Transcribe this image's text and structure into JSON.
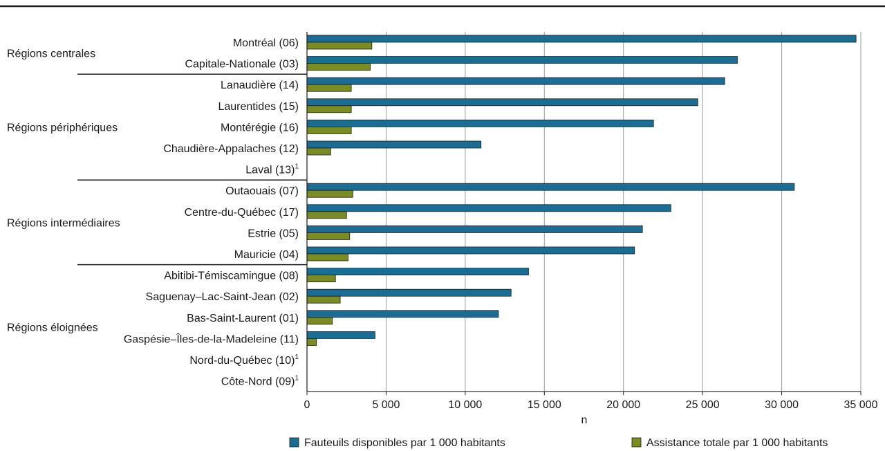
{
  "chart_data": {
    "type": "bar",
    "orientation": "horizontal",
    "xlabel": "n",
    "xlim": [
      0,
      35000
    ],
    "xticks": [
      0,
      5000,
      10000,
      15000,
      20000,
      25000,
      30000,
      35000
    ],
    "xtick_labels": [
      "0",
      "5 000",
      "10 000",
      "15 000",
      "20 000",
      "25 000",
      "30 000",
      "35 000"
    ],
    "grid": true,
    "legend_position": "bottom",
    "categories": [
      {
        "label": "Montréal (06)",
        "note": ""
      },
      {
        "label": "Capitale-Nationale (03)",
        "note": ""
      },
      {
        "label": "Lanaudière (14)",
        "note": ""
      },
      {
        "label": "Laurentides (15)",
        "note": ""
      },
      {
        "label": "Montérégie (16)",
        "note": ""
      },
      {
        "label": "Chaudière-Appalaches (12)",
        "note": ""
      },
      {
        "label": "Laval (13)",
        "note": "1"
      },
      {
        "label": "Outaouais (07)",
        "note": ""
      },
      {
        "label": "Centre-du-Québec (17)",
        "note": ""
      },
      {
        "label": "Estrie (05)",
        "note": ""
      },
      {
        "label": "Mauricie (04)",
        "note": ""
      },
      {
        "label": "Abitibi-Témiscamingue (08)",
        "note": ""
      },
      {
        "label": "Saguenay–Lac-Saint-Jean (02)",
        "note": ""
      },
      {
        "label": "Bas-Saint-Laurent (01)",
        "note": ""
      },
      {
        "label": "Gaspésie–Îles-de-la-Madeleine (11)",
        "note": ""
      },
      {
        "label": "Nord-du-Québec (10)",
        "note": "1"
      },
      {
        "label": "Côte-Nord (09)",
        "note": "1"
      }
    ],
    "series": [
      {
        "name": "Fauteuils disponibles par 1 000 habitants",
        "color": "#1a6e96",
        "values": [
          34700,
          27200,
          26400,
          24700,
          21900,
          11000,
          null,
          30800,
          23000,
          21200,
          20700,
          14000,
          12900,
          12100,
          4300,
          null,
          null
        ]
      },
      {
        "name": "Assistance totale par 1 000 habitants",
        "color": "#7a8c22",
        "values": [
          4100,
          4000,
          2800,
          2800,
          2800,
          1500,
          null,
          2900,
          2500,
          2700,
          2600,
          1800,
          2100,
          1600,
          600,
          null,
          null
        ]
      }
    ],
    "groups": [
      {
        "label": "Régions centrales",
        "first": 0,
        "last": 1
      },
      {
        "label": "Régions périphériques",
        "first": 2,
        "last": 6
      },
      {
        "label": "Régions intermédiaires",
        "first": 7,
        "last": 10
      },
      {
        "label": "Régions éloignées",
        "first": 11,
        "last": 16
      }
    ]
  }
}
